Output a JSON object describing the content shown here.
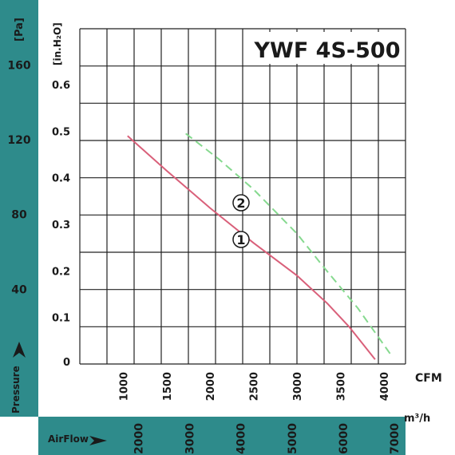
{
  "chart_data": {
    "type": "line",
    "title": "YWF 4S-500",
    "band_color": "#2e8b8b",
    "grid_color": "#222222",
    "x_unit_cfm": "CFM",
    "x_unit_m3h": "m³/h",
    "y_unit_inh2o": "[in.H₂O]",
    "y_unit_pa": "[Pa]",
    "pressure_label": "Pressure",
    "airflow_label": "AirFlow",
    "x_ticks_cfm": [
      "1000",
      "1500",
      "2000",
      "2500",
      "3000",
      "3500",
      "4000"
    ],
    "x_ticks_m3h": [
      "2000",
      "3000",
      "4000",
      "5000",
      "6000",
      "7000"
    ],
    "y_ticks_inh2o": [
      "0",
      "0.1",
      "0.2",
      "0.3",
      "0.4",
      "0.5",
      "0.6"
    ],
    "y_ticks_pa": [
      "40",
      "80",
      "120",
      "160"
    ],
    "xlim_cfm": [
      500,
      4250
    ],
    "ylim_inh2o": [
      0,
      0.72
    ],
    "series": [
      {
        "label": "1",
        "color": "#d9607a",
        "dash": "",
        "points": [
          [
            1050,
            0.49
          ],
          [
            1500,
            0.415
          ],
          [
            2000,
            0.335
          ],
          [
            2500,
            0.26
          ],
          [
            3000,
            0.19
          ],
          [
            3350,
            0.13
          ],
          [
            3600,
            0.08
          ],
          [
            3900,
            0.01
          ]
        ]
      },
      {
        "label": "2",
        "color": "#86d98f",
        "dash": "10,6",
        "points": [
          [
            1720,
            0.495
          ],
          [
            2100,
            0.44
          ],
          [
            2500,
            0.375
          ],
          [
            3000,
            0.28
          ],
          [
            3300,
            0.21
          ],
          [
            3700,
            0.12
          ],
          [
            4100,
            0.015
          ]
        ]
      }
    ]
  }
}
